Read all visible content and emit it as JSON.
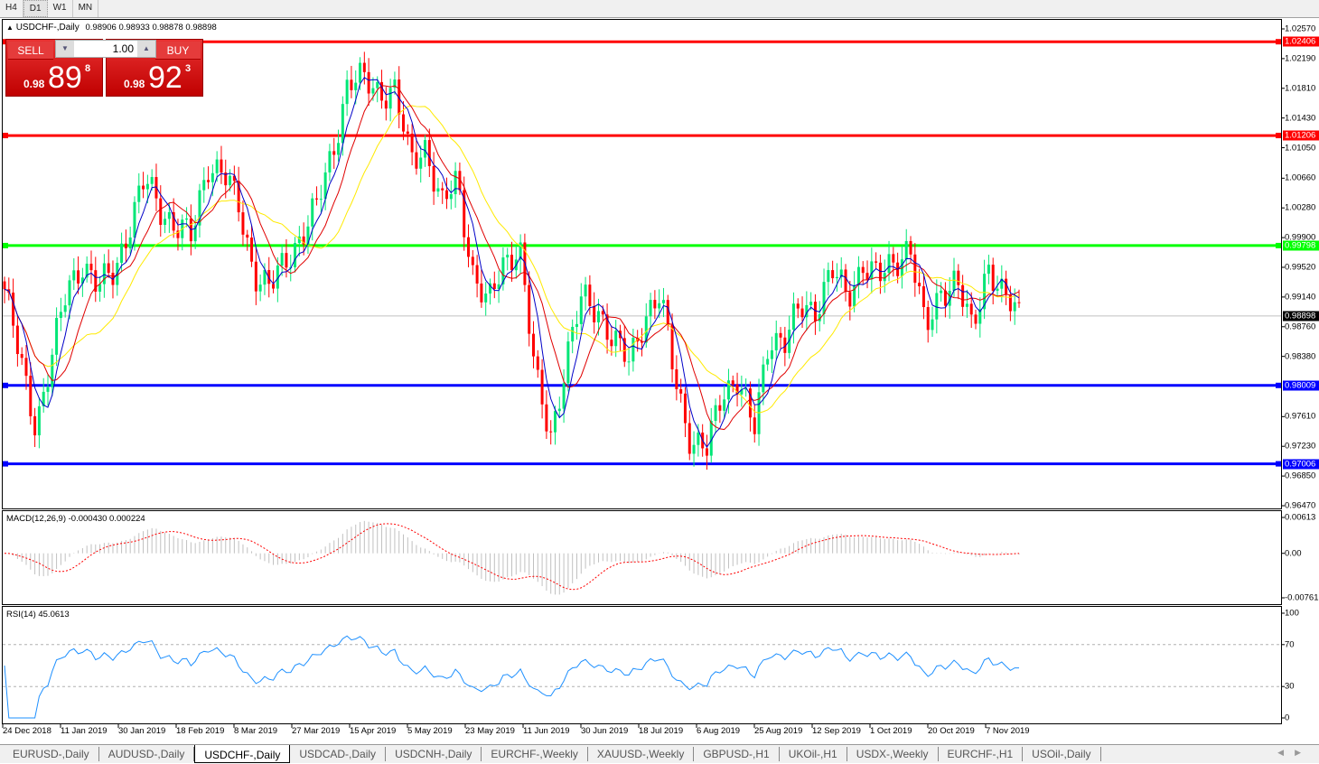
{
  "toolbar": {
    "timeframes": [
      "H4",
      "D1",
      "W1",
      "MN"
    ],
    "active": "D1"
  },
  "chart": {
    "title": "USDCHF-,Daily",
    "ohlc": "0.98906 0.98933 0.98878 0.98898",
    "collapse_icon": "triangle-up-icon",
    "trade_panel": {
      "sell_label": "SELL",
      "buy_label": "BUY",
      "lot": "1.00",
      "sell_prefix": "0.98",
      "sell_big": "89",
      "sell_sup": "8",
      "buy_prefix": "0.98",
      "buy_big": "92",
      "buy_sup": "3"
    },
    "price_axis": [
      "1.02570",
      "1.02190",
      "1.01810",
      "1.01430",
      "1.01050",
      "1.00660",
      "1.00280",
      "0.99900",
      "0.99520",
      "0.99140",
      "0.98760",
      "0.98380",
      "0.97610",
      "0.97230",
      "0.96850",
      "0.96470"
    ],
    "price_range": [
      0.9647,
      1.0257
    ],
    "horizontal_lines": [
      {
        "price": "1.02406",
        "color": "#ff0000"
      },
      {
        "price": "1.01206",
        "color": "#ff0000"
      },
      {
        "price": "0.99798",
        "color": "#00ff00"
      },
      {
        "price": "0.98009",
        "color": "#0000ff"
      },
      {
        "price": "0.97006",
        "color": "#0000ff"
      }
    ],
    "current_price": {
      "price": "0.98898",
      "color": "#000000"
    },
    "colors": {
      "bull": "#00e676",
      "bear": "#ff0000",
      "ma_fast": "#0000c8",
      "ma_mid": "#e00000",
      "ma_slow": "#ffea00"
    },
    "date_axis": [
      "24 Dec 2018",
      "11 Jan 2019",
      "30 Jan 2019",
      "18 Feb 2019",
      "8 Mar 2019",
      "27 Mar 2019",
      "15 Apr 2019",
      "5 May 2019",
      "23 May 2019",
      "11 Jun 2019",
      "30 Jun 2019",
      "18 Jul 2019",
      "6 Aug 2019",
      "25 Aug 2019",
      "12 Sep 2019",
      "1 Oct 2019",
      "20 Oct 2019",
      "7 Nov 2019"
    ]
  },
  "chart_data": {
    "type": "candlestick",
    "approx_close_path": [
      0.9924,
      0.9832,
      0.9751,
      0.9832,
      0.9924,
      0.9959,
      0.9924,
      0.9947,
      1.0005,
      1.0063,
      1.0028,
      1.0005,
      0.9988,
      1.0086,
      1.0074,
      1.0028,
      0.9947,
      0.9924,
      0.9959,
      0.9994,
      1.0028,
      1.0098,
      1.019,
      1.019,
      1.0178,
      1.0178,
      1.0086,
      1.0109,
      1.0028,
      1.0063,
      0.9947,
      0.9901,
      0.9959,
      0.9982,
      0.9809,
      0.9739,
      0.9832,
      0.9913,
      0.9901,
      0.9855,
      0.9832,
      0.989,
      0.9913,
      0.9809,
      0.9728,
      0.9716,
      0.9797,
      0.9809,
      0.9739,
      0.9867,
      0.9855,
      0.9901,
      0.9901,
      0.9947,
      0.9913,
      0.9959,
      0.9936,
      0.9959,
      0.9982,
      0.9867,
      0.9924,
      0.9936,
      0.9867,
      0.9959,
      0.9913,
      0.989
    ],
    "bars": 235
  },
  "macd": {
    "title": "MACD(12,26,9) -0.000430 0.000224",
    "axis": [
      "0.00613",
      "0.00",
      "-0.00761"
    ],
    "histogram_color": "#c0c0c0",
    "signal_color": "#ff0000"
  },
  "rsi": {
    "title": "RSI(14) 45.0613",
    "axis": [
      "100",
      "70",
      "30",
      "0"
    ],
    "levels": [
      70,
      30
    ],
    "color": "#1e90ff"
  },
  "tabs": [
    "EURUSD-,Daily",
    "AUDUSD-,Daily",
    "USDCHF-,Daily",
    "USDCAD-,Daily",
    "USDCNH-,Daily",
    "EURCHF-,Weekly",
    "XAUUSD-,Weekly",
    "GBPUSD-,H1",
    "UKOil-,H1",
    "USDX-,Weekly",
    "EURCHF-,H1",
    "USOil-,Daily"
  ],
  "active_tab": "USDCHF-,Daily",
  "scroll_icons": [
    "chevron-left-icon",
    "chevron-right-icon"
  ]
}
